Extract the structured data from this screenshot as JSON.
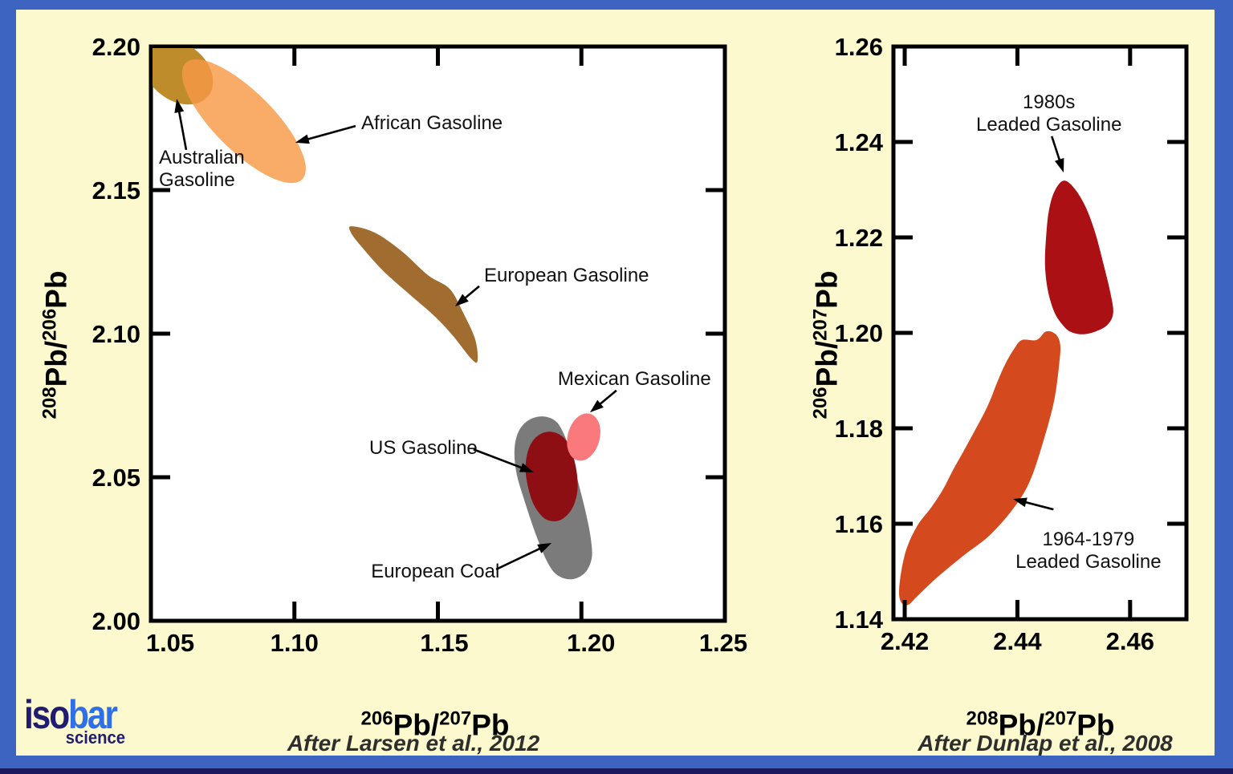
{
  "page": {
    "background_color": "#FBF9CD",
    "border_color": "#3C64C0",
    "bottom_edge_color": "#1B1A5E",
    "plot_background": "#FFFFFF"
  },
  "logo": {
    "part1": "iso",
    "part2": "bar",
    "subtitle": "science",
    "color1": "#201C70",
    "color2": "#2F6FE8"
  },
  "citations": {
    "left": "After Larsen et al., 2012",
    "right": "After Dunlap et al., 2008"
  },
  "chart_data": [
    {
      "type": "scatter",
      "subtype": "isotope-field-regions",
      "title": "",
      "xlabel_segments": [
        {
          "sup": "206"
        },
        {
          "t": "Pb/"
        },
        {
          "sup": "207"
        },
        {
          "t": "Pb"
        }
      ],
      "ylabel_segments": [
        {
          "sup": "208"
        },
        {
          "t": "Pb/"
        },
        {
          "sup": "206"
        },
        {
          "t": "Pb"
        }
      ],
      "xlim": [
        1.05,
        1.25
      ],
      "ylim": [
        2.0,
        2.2
      ],
      "xticks": [
        1.05,
        1.1,
        1.15,
        1.2,
        1.25
      ],
      "xtick_labels": [
        "1.05",
        "1.10",
        "1.15",
        "1.20",
        "1.25"
      ],
      "yticks": [
        2.0,
        2.05,
        2.1,
        2.15,
        2.2
      ],
      "ytick_labels": [
        "2.00",
        "2.05",
        "2.10",
        "2.15",
        "2.20"
      ],
      "grid": false,
      "legend": null,
      "regions": [
        {
          "name": "Australian Gasoline",
          "shape": "ellipse",
          "color": "#BE8C2B",
          "cx": 1.0595,
          "cy": 2.1911,
          "rx": 0.0134,
          "ry": 0.0098,
          "rot": 38
        },
        {
          "name": "African Gasoline",
          "shape": "ellipse",
          "color": "#F89947",
          "opacity": 0.82,
          "cx": 1.0824,
          "cy": 2.174,
          "rx": 0.0287,
          "ry": 0.0103,
          "rot": 45
        },
        {
          "name": "European Gasoline",
          "shape": "polygon",
          "color": "#A06C2F",
          "points": [
            [
              1.1199,
              2.1374
            ],
            [
              1.128,
              2.1352
            ],
            [
              1.1373,
              2.1288
            ],
            [
              1.1465,
              2.1204
            ],
            [
              1.1541,
              2.1156
            ],
            [
              1.1588,
              2.1073
            ],
            [
              1.163,
              2.098
            ],
            [
              1.1638,
              2.0905
            ],
            [
              1.1616,
              2.0913
            ],
            [
              1.1549,
              2.0997
            ],
            [
              1.1485,
              2.1064
            ],
            [
              1.1401,
              2.1137
            ],
            [
              1.1308,
              2.122
            ],
            [
              1.1233,
              2.1304
            ],
            [
              1.1197,
              2.1352
            ]
          ]
        },
        {
          "name": "European Coal",
          "shape": "polygon",
          "color": "#7B7B7B",
          "points": [
            [
              1.1767,
              2.0598
            ],
            [
              1.1781,
              2.0659
            ],
            [
              1.1815,
              2.0698
            ],
            [
              1.1862,
              2.0712
            ],
            [
              1.1907,
              2.0698
            ],
            [
              1.1935,
              2.0659
            ],
            [
              1.196,
              2.0592
            ],
            [
              1.1988,
              2.0486
            ],
            [
              1.2016,
              2.0374
            ],
            [
              1.2033,
              2.0285
            ],
            [
              1.2036,
              2.0218
            ],
            [
              1.2013,
              2.0168
            ],
            [
              1.1969,
              2.0145
            ],
            [
              1.1921,
              2.0156
            ],
            [
              1.1885,
              2.0198
            ],
            [
              1.1843,
              2.0296
            ],
            [
              1.1798,
              2.043
            ],
            [
              1.1773,
              2.0519
            ]
          ]
        },
        {
          "name": "US Gasoline",
          "shape": "polygon",
          "color": "#8D0F13",
          "points": [
            [
              1.1806,
              2.0514
            ],
            [
              1.1812,
              2.0584
            ],
            [
              1.1834,
              2.0631
            ],
            [
              1.1871,
              2.0656
            ],
            [
              1.1913,
              2.0654
            ],
            [
              1.1949,
              2.0626
            ],
            [
              1.1971,
              2.0575
            ],
            [
              1.1985,
              2.0508
            ],
            [
              1.1985,
              2.0444
            ],
            [
              1.1966,
              2.0388
            ],
            [
              1.1929,
              2.0352
            ],
            [
              1.1887,
              2.0349
            ],
            [
              1.1854,
              2.0374
            ],
            [
              1.1826,
              2.0424
            ]
          ]
        },
        {
          "name": "Mexican Gasoline",
          "shape": "ellipse",
          "color": "#F9797D",
          "cx": 1.2008,
          "cy": 2.064,
          "rx": 0.0056,
          "ry": 0.0084,
          "rot": 15
        }
      ],
      "annotations": [
        {
          "lines": [
            "African Gasoline"
          ],
          "x": 1.1233,
          "y": 2.1735,
          "anchor": "start",
          "arrow": [
            1.1213,
            2.1723,
            1.1003,
            2.1665
          ]
        },
        {
          "lines": [
            "Australian",
            "Gasoline"
          ],
          "x": 1.0528,
          "y": 2.1615,
          "anchor": "start",
          "arrow": [
            1.0623,
            2.164,
            1.059,
            2.1818
          ]
        },
        {
          "lines": [
            "European Gasoline"
          ],
          "x": 1.1661,
          "y": 2.1204,
          "anchor": "start",
          "arrow": [
            1.1644,
            2.1165,
            1.156,
            2.1095
          ]
        },
        {
          "lines": [
            "Mexican Gasoline"
          ],
          "x": 1.1918,
          "y": 2.0843,
          "anchor": "start",
          "arrow": [
            1.2122,
            2.0802,
            1.203,
            2.0726
          ]
        },
        {
          "lines": [
            "US Gasoline"
          ],
          "x": 1.1261,
          "y": 2.0603,
          "anchor": "start",
          "arrow": [
            1.1624,
            2.0597,
            1.1834,
            2.0517
          ]
        },
        {
          "lines": [
            "European Coal"
          ],
          "x": 1.1267,
          "y": 2.0173,
          "anchor": "start",
          "arrow": [
            1.1703,
            2.0179,
            1.1896,
            2.0271
          ]
        }
      ]
    },
    {
      "type": "scatter",
      "subtype": "isotope-field-regions",
      "title": "",
      "xlabel_segments": [
        {
          "sup": "208"
        },
        {
          "t": "Pb/"
        },
        {
          "sup": "207"
        },
        {
          "t": "Pb"
        }
      ],
      "ylabel_segments": [
        {
          "sup": "206"
        },
        {
          "t": "Pb/"
        },
        {
          "sup": "207"
        },
        {
          "t": "Pb"
        }
      ],
      "xlim": [
        2.418,
        2.47
      ],
      "ylim": [
        1.14,
        1.26
      ],
      "xticks": [
        2.42,
        2.44,
        2.46
      ],
      "xtick_labels": [
        "2.42",
        "2.44",
        "2.46"
      ],
      "yticks": [
        1.14,
        1.16,
        1.18,
        1.2,
        1.22,
        1.24,
        1.26
      ],
      "ytick_labels": [
        "1.14",
        "1.16",
        "1.18",
        "1.20",
        "1.22",
        "1.24",
        "1.26"
      ],
      "grid": false,
      "legend": null,
      "regions": [
        {
          "name": "1964-1979 Leaded Gasoline",
          "shape": "polygon",
          "color": "#D4491D",
          "points": [
            [
              2.4434,
              1.1985
            ],
            [
              2.4451,
              1.2003
            ],
            [
              2.4468,
              1.1997
            ],
            [
              2.4476,
              1.1975
            ],
            [
              2.4474,
              1.1933
            ],
            [
              2.4465,
              1.1857
            ],
            [
              2.4446,
              1.1773
            ],
            [
              2.4422,
              1.1689
            ],
            [
              2.4394,
              1.1634
            ],
            [
              2.4351,
              1.1576
            ],
            [
              2.4304,
              1.1533
            ],
            [
              2.4257,
              1.1487
            ],
            [
              2.4223,
              1.1449
            ],
            [
              2.4206,
              1.143
            ],
            [
              2.4194,
              1.1435
            ],
            [
              2.419,
              1.1457
            ],
            [
              2.4194,
              1.1501
            ],
            [
              2.4204,
              1.155
            ],
            [
              2.4223,
              1.1597
            ],
            [
              2.4247,
              1.1634
            ],
            [
              2.4268,
              1.1672
            ],
            [
              2.4285,
              1.1711
            ],
            [
              2.4304,
              1.1751
            ],
            [
              2.4322,
              1.179
            ],
            [
              2.4338,
              1.1825
            ],
            [
              2.4351,
              1.1857
            ],
            [
              2.4365,
              1.1899
            ],
            [
              2.4379,
              1.1936
            ],
            [
              2.4394,
              1.1966
            ],
            [
              2.4408,
              1.1985
            ]
          ]
        },
        {
          "name": "1980s Leaded Gasoline",
          "shape": "polygon",
          "color": "#AA1014",
          "points": [
            [
              2.4482,
              1.2319
            ],
            [
              2.4501,
              1.2303
            ],
            [
              2.4521,
              1.2264
            ],
            [
              2.4538,
              1.221
            ],
            [
              2.4553,
              1.2143
            ],
            [
              2.4565,
              1.2084
            ],
            [
              2.457,
              1.2042
            ],
            [
              2.456,
              1.2017
            ],
            [
              2.4539,
              1.2003
            ],
            [
              2.4515,
              1.1997
            ],
            [
              2.4493,
              1.2003
            ],
            [
              2.4478,
              1.202
            ],
            [
              2.4465,
              1.2045
            ],
            [
              2.4454,
              1.2089
            ],
            [
              2.4449,
              1.2143
            ],
            [
              2.4451,
              1.2202
            ],
            [
              2.4456,
              1.2257
            ],
            [
              2.4466,
              1.2297
            ]
          ]
        }
      ],
      "annotations": [
        {
          "lines": [
            "1980s",
            "Leaded Gasoline"
          ],
          "x": 2.4456,
          "y": 1.2484,
          "anchor": "middle",
          "arrow": [
            2.4461,
            1.2412,
            2.4482,
            1.2336
          ]
        },
        {
          "lines": [
            "1964-1979",
            "Leaded Gasoline"
          ],
          "x": 2.4526,
          "y": 1.1568,
          "anchor": "middle",
          "arrow": [
            2.4464,
            1.163,
            2.4392,
            1.1652
          ]
        }
      ]
    }
  ]
}
